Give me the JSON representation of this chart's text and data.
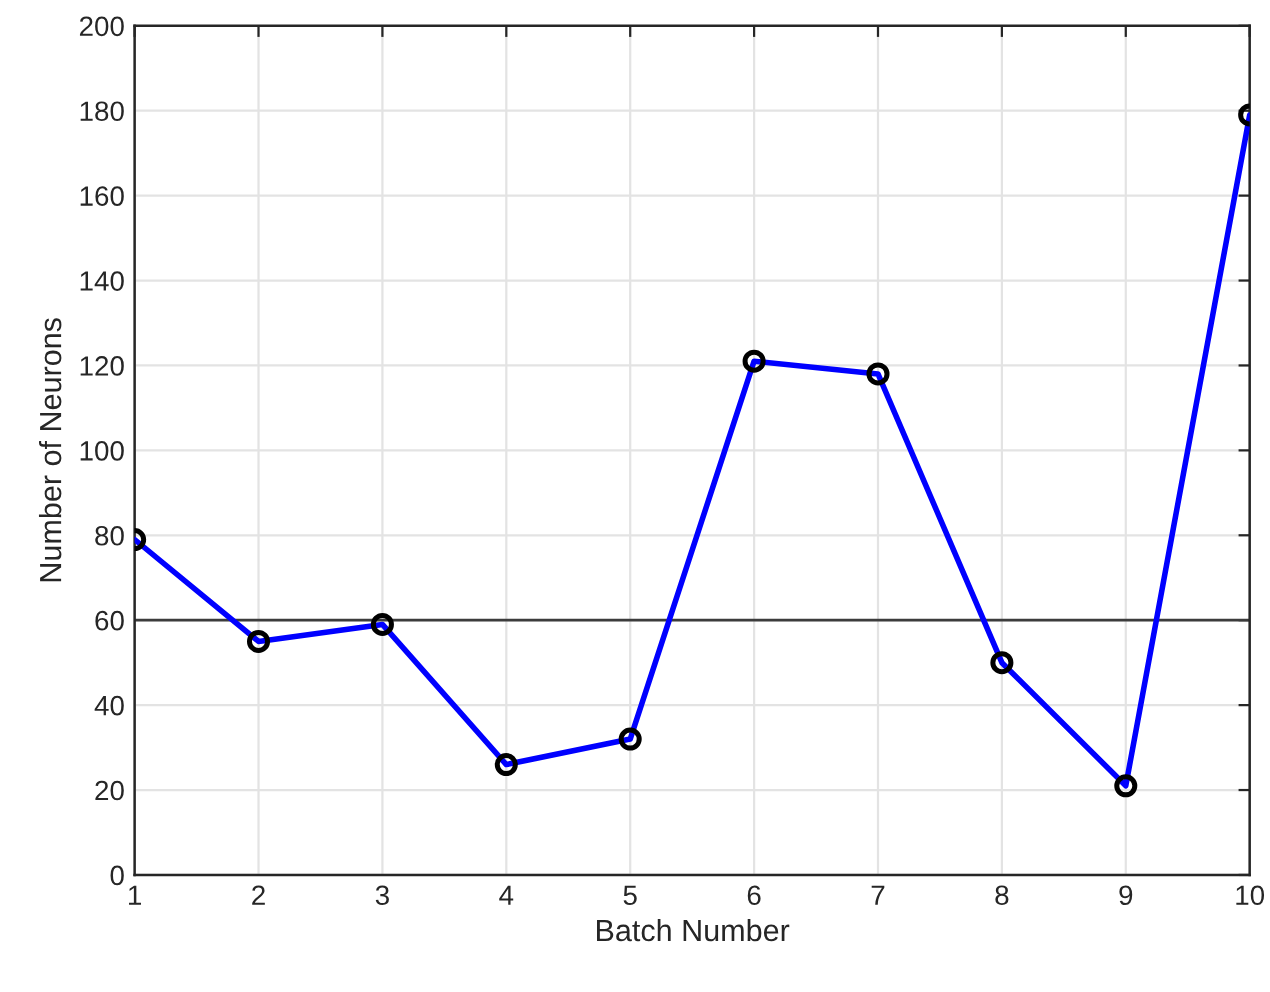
{
  "chart_data": {
    "type": "line",
    "xlabel": "Batch Number",
    "ylabel": "Number of Neurons",
    "x": [
      1,
      2,
      3,
      4,
      5,
      6,
      7,
      8,
      9,
      10
    ],
    "series": [
      {
        "color": "#0000ff",
        "values": [
          79,
          55,
          59,
          26,
          32,
          121,
          118,
          50,
          21,
          179
        ]
      }
    ],
    "xlim": [
      1,
      10
    ],
    "xticks": [
      1,
      2,
      3,
      4,
      5,
      6,
      7,
      8,
      9,
      10
    ],
    "ylim": [
      0,
      200
    ],
    "yticks": [
      0,
      20,
      40,
      60,
      80,
      100,
      120,
      140,
      160,
      180,
      200
    ],
    "ref_lines": [
      {
        "axis": "y",
        "value": 60,
        "color": "#3c3c3c"
      }
    ],
    "grid": true,
    "marker": "circle",
    "line_style": "solid"
  }
}
